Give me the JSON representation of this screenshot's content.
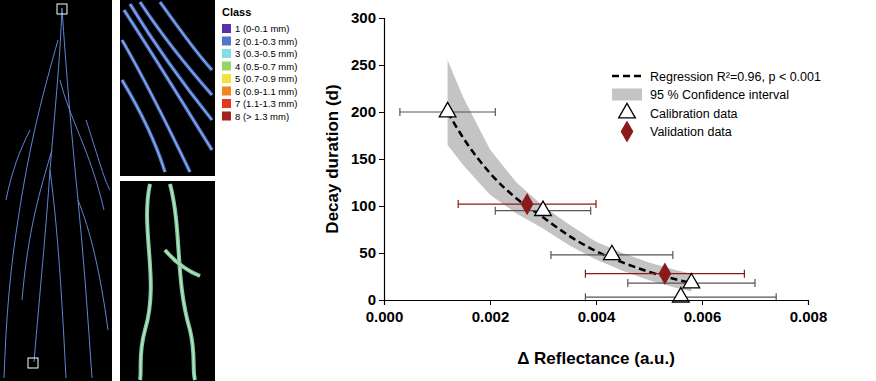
{
  "class_legend": {
    "title": "Class",
    "items": [
      {
        "label": "1 (0-0.1 mm)",
        "color": "#5a2fa8"
      },
      {
        "label": "2 (0.1-0.3 mm)",
        "color": "#4f76cc"
      },
      {
        "label": "3 (0.3-0.5 mm)",
        "color": "#86dde3"
      },
      {
        "label": "4 (0.5-0.7 mm)",
        "color": "#98d468"
      },
      {
        "label": "5 (0.7-0.9 mm)",
        "color": "#f2e23e"
      },
      {
        "label": "6 (0.9-1.1 mm)",
        "color": "#f2861e"
      },
      {
        "label": "7 (1.1-1.3 mm)",
        "color": "#e2381e"
      },
      {
        "label": "8 (> 1.3 mm)",
        "color": "#a3221c"
      }
    ]
  },
  "chart_data": {
    "type": "scatter",
    "xlabel": "Δ Reflectance (a.u.)",
    "ylabel": "Decay duration (d)",
    "xlim": [
      0,
      0.008
    ],
    "xticks": [
      {
        "value": 0,
        "label": "0.000"
      },
      {
        "value": 0.002,
        "label": "0.002"
      },
      {
        "value": 0.004,
        "label": "0.004"
      },
      {
        "value": 0.006,
        "label": "0.006"
      },
      {
        "value": 0.008,
        "label": "0.008"
      }
    ],
    "ylim": [
      0,
      300
    ],
    "yticks": [
      0,
      50,
      100,
      150,
      200,
      250,
      300
    ],
    "legend": "upper right",
    "series": [
      {
        "name": "Regression R²=0.96, p < 0.001",
        "type": "line",
        "line_style": "dashed",
        "color": "#000000",
        "x": [
          0.0012,
          0.0015,
          0.002,
          0.0025,
          0.003,
          0.0035,
          0.004,
          0.0045,
          0.005,
          0.0055,
          0.0058
        ],
        "values": [
          200,
          172,
          135,
          108,
          88,
          68,
          52,
          40,
          30,
          22,
          18
        ]
      },
      {
        "name": "95 % Confidence interval",
        "type": "area",
        "color": "#c4c4c4",
        "x": [
          0.0012,
          0.0015,
          0.002,
          0.0025,
          0.003,
          0.0035,
          0.004,
          0.0045,
          0.005,
          0.0055,
          0.0058
        ],
        "upper": [
          255,
          215,
          160,
          125,
          100,
          80,
          62,
          50,
          40,
          32,
          28
        ],
        "lower": [
          165,
          143,
          112,
          92,
          76,
          58,
          43,
          31,
          21,
          13,
          9
        ]
      },
      {
        "name": "Calibration data",
        "type": "scatter",
        "marker": "triangle",
        "color": "#ffffff",
        "x": [
          0.0012,
          0.003,
          0.0043,
          0.0058,
          0.0056
        ],
        "values": [
          200,
          95,
          48,
          18,
          3
        ],
        "x_error": [
          0.0009,
          0.0009,
          0.00115,
          0.0012,
          0.0018
        ]
      },
      {
        "name": "Validation data",
        "type": "scatter",
        "marker": "diamond",
        "color": "#8b1a1a",
        "x": [
          0.0027,
          0.0053
        ],
        "values": [
          102,
          28
        ],
        "x_error": [
          0.0013,
          0.0015
        ]
      }
    ]
  }
}
